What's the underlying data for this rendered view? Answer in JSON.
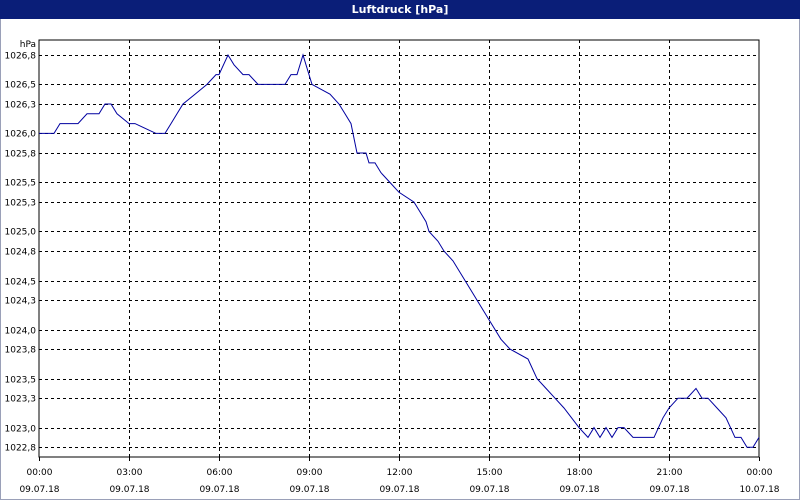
{
  "window": {
    "title": "Luftdruck [hPa]"
  },
  "chart_data": {
    "type": "line",
    "title": "Luftdruck [hPa]",
    "ylabel": "hPa",
    "xlabel": "",
    "ylim": [
      1022.7,
      1026.8
    ],
    "xlim": [
      0,
      24
    ],
    "grid": true,
    "colors": {
      "line": "#0000a0",
      "title_bar": "#0a1e78",
      "grid": "#000000"
    },
    "y_ticks": [
      {
        "value": 1026.8,
        "label": "1026,8"
      },
      {
        "value": 1026.5,
        "label": "1026,5"
      },
      {
        "value": 1026.3,
        "label": "1026,3"
      },
      {
        "value": 1026.0,
        "label": "1026,0"
      },
      {
        "value": 1025.8,
        "label": "1025,8"
      },
      {
        "value": 1025.5,
        "label": "1025,5"
      },
      {
        "value": 1025.3,
        "label": "1025,3"
      },
      {
        "value": 1025.0,
        "label": "1025,0"
      },
      {
        "value": 1024.8,
        "label": "1024,8"
      },
      {
        "value": 1024.5,
        "label": "1024,5"
      },
      {
        "value": 1024.3,
        "label": "1024,3"
      },
      {
        "value": 1024.0,
        "label": "1024,0"
      },
      {
        "value": 1023.8,
        "label": "1023,8"
      },
      {
        "value": 1023.5,
        "label": "1023,5"
      },
      {
        "value": 1023.3,
        "label": "1023,3"
      },
      {
        "value": 1023.0,
        "label": "1023,0"
      },
      {
        "value": 1022.8,
        "label": "1022,8"
      }
    ],
    "x_ticks": [
      {
        "value": 0,
        "time": "00:00",
        "date": "09.07.18"
      },
      {
        "value": 3,
        "time": "03:00",
        "date": "09.07.18"
      },
      {
        "value": 6,
        "time": "06:00",
        "date": "09.07.18"
      },
      {
        "value": 9,
        "time": "09:00",
        "date": "09.07.18"
      },
      {
        "value": 12,
        "time": "12:00",
        "date": "09.07.18"
      },
      {
        "value": 15,
        "time": "15:00",
        "date": "09.07.18"
      },
      {
        "value": 18,
        "time": "18:00",
        "date": "09.07.18"
      },
      {
        "value": 21,
        "time": "21:00",
        "date": "09.07.18"
      },
      {
        "value": 24,
        "time": "00:00",
        "date": "10.07.18"
      }
    ],
    "series": [
      {
        "x": [
          0,
          0.5,
          0.7,
          1.3,
          1.6,
          2.0,
          2.2,
          2.4,
          2.6,
          3.0,
          3.2,
          3.9,
          4.2,
          4.4,
          4.6,
          4.8,
          5.2,
          5.6,
          5.9,
          6.0,
          6.3,
          6.5,
          6.8,
          7.0,
          7.3,
          7.5,
          8.2,
          8.4,
          8.6,
          8.8,
          9.0,
          9.1,
          9.7,
          10.0,
          10.2,
          10.4,
          10.6,
          10.9,
          11.0,
          11.2,
          11.4,
          11.7,
          12.0,
          12.5,
          12.7,
          12.9,
          13.0,
          13.3,
          13.5,
          13.8,
          14.2,
          14.6,
          15.0,
          15.4,
          15.7,
          16.3,
          16.6,
          16.9,
          17.2,
          17.5,
          18.0,
          18.3,
          18.5,
          18.7,
          18.9,
          19.1,
          19.3,
          19.5,
          19.8,
          20.5,
          20.8,
          21.0,
          21.3,
          21.6,
          21.9,
          22.1,
          22.3,
          22.6,
          22.9,
          23.2,
          23.4,
          23.6,
          23.8,
          24.0
        ],
        "y": [
          1026.0,
          1026.0,
          1026.1,
          1026.1,
          1026.2,
          1026.2,
          1026.3,
          1026.3,
          1026.2,
          1026.1,
          1026.1,
          1026.0,
          1026.0,
          1026.1,
          1026.2,
          1026.3,
          1026.4,
          1026.5,
          1026.6,
          1026.6,
          1026.8,
          1026.7,
          1026.6,
          1026.6,
          1026.5,
          1026.5,
          1026.5,
          1026.6,
          1026.6,
          1026.8,
          1026.6,
          1026.5,
          1026.4,
          1026.3,
          1026.2,
          1026.1,
          1025.8,
          1025.8,
          1025.7,
          1025.7,
          1025.6,
          1025.5,
          1025.4,
          1025.3,
          1025.2,
          1025.1,
          1025.0,
          1024.9,
          1024.8,
          1024.7,
          1024.5,
          1024.3,
          1024.1,
          1023.9,
          1023.8,
          1023.7,
          1023.5,
          1023.4,
          1023.3,
          1023.2,
          1023.0,
          1022.9,
          1023.0,
          1022.9,
          1023.0,
          1022.9,
          1023.0,
          1023.0,
          1022.9,
          1022.9,
          1023.1,
          1023.2,
          1023.3,
          1023.3,
          1023.4,
          1023.3,
          1023.3,
          1023.2,
          1023.1,
          1022.9,
          1022.9,
          1022.8,
          1022.8,
          1022.9
        ]
      }
    ]
  }
}
